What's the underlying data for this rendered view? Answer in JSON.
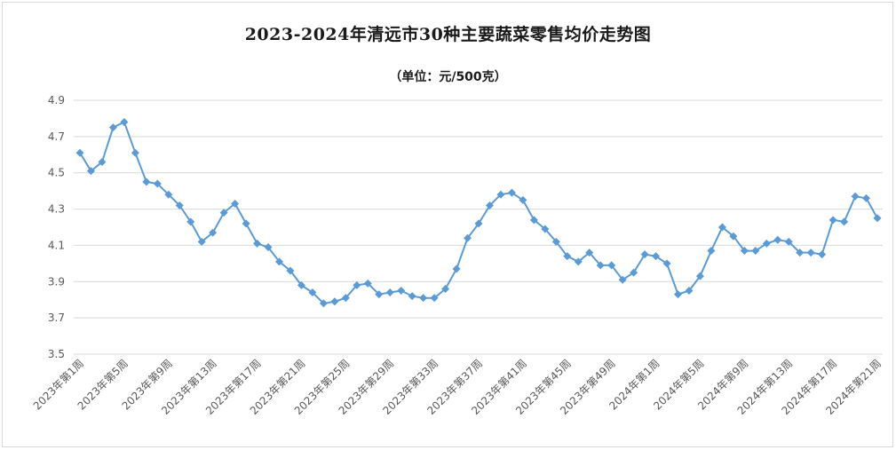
{
  "chart_data": {
    "type": "line",
    "title": "2023-2024年清远市30种主要蔬菜零售均价走势图",
    "subtitle": "（单位：元/500克）",
    "xlabel": "",
    "ylabel": "",
    "ylim": [
      3.5,
      4.9
    ],
    "yticks": [
      "3.5",
      "3.7",
      "3.9",
      "4.1",
      "4.3",
      "4.5",
      "4.7",
      "4.9"
    ],
    "grid": true,
    "legend": "none",
    "line_color": "#5b9bd5",
    "categories": [
      "2023年第1周",
      "2023年第2周",
      "2023年第3周",
      "2023年第4周",
      "2023年第5周",
      "2023年第6周",
      "2023年第7周",
      "2023年第8周",
      "2023年第9周",
      "2023年第10周",
      "2023年第11周",
      "2023年第12周",
      "2023年第13周",
      "2023年第14周",
      "2023年第15周",
      "2023年第16周",
      "2023年第17周",
      "2023年第18周",
      "2023年第19周",
      "2023年第20周",
      "2023年第21周",
      "2023年第22周",
      "2023年第23周",
      "2023年第24周",
      "2023年第25周",
      "2023年第26周",
      "2023年第27周",
      "2023年第28周",
      "2023年第29周",
      "2023年第30周",
      "2023年第31周",
      "2023年第32周",
      "2023年第33周",
      "2023年第34周",
      "2023年第35周",
      "2023年第36周",
      "2023年第37周",
      "2023年第38周",
      "2023年第39周",
      "2023年第40周",
      "2023年第41周",
      "2023年第42周",
      "2023年第43周",
      "2023年第44周",
      "2023年第45周",
      "2023年第46周",
      "2023年第47周",
      "2023年第48周",
      "2023年第49周",
      "2023年第50周",
      "2023年第51周",
      "2023年第52周",
      "2024年第1周",
      "2024年第2周",
      "2024年第3周",
      "2024年第4周",
      "2024年第5周",
      "2024年第6周",
      "2024年第7周",
      "2024年第8周",
      "2024年第9周",
      "2024年第10周",
      "2024年第11周",
      "2024年第12周",
      "2024年第13周",
      "2024年第14周",
      "2024年第15周",
      "2024年第16周",
      "2024年第17周",
      "2024年第18周",
      "2024年第19周",
      "2024年第20周",
      "2024年第21周"
    ],
    "x_tick_labels_shown": [
      "2023年第1周",
      "2023年第5周",
      "2023年第9周",
      "2023年第13周",
      "2023年第17周",
      "2023年第21周",
      "2023年第25周",
      "2023年第29周",
      "2023年第33周",
      "2023年第37周",
      "2023年第41周",
      "2023年第45周",
      "2023年第49周",
      "2024年第1周",
      "2024年第5周",
      "2024年第9周",
      "2024年第13周",
      "2024年第17周",
      "2024年第21周"
    ],
    "series": [
      {
        "values": [
          4.61,
          4.51,
          4.56,
          4.75,
          4.78,
          4.61,
          4.45,
          4.44,
          4.38,
          4.32,
          4.23,
          4.12,
          4.17,
          4.28,
          4.33,
          4.22,
          4.11,
          4.09,
          4.01,
          3.96,
          3.88,
          3.84,
          3.78,
          3.79,
          3.81,
          3.88,
          3.89,
          3.83,
          3.84,
          3.85,
          3.82,
          3.81,
          3.81,
          3.86,
          3.97,
          4.14,
          4.22,
          4.32,
          4.38,
          4.39,
          4.35,
          4.24,
          4.19,
          4.12,
          4.04,
          4.01,
          4.06,
          3.99,
          3.99,
          3.91,
          3.95,
          4.05,
          4.04,
          4.0,
          3.83,
          3.85,
          3.93,
          4.07,
          4.2,
          4.15,
          4.07,
          4.07,
          4.11,
          4.13,
          4.12,
          4.06,
          4.06,
          4.05,
          4.24,
          4.23,
          4.37,
          4.36,
          4.25
        ]
      }
    ]
  }
}
